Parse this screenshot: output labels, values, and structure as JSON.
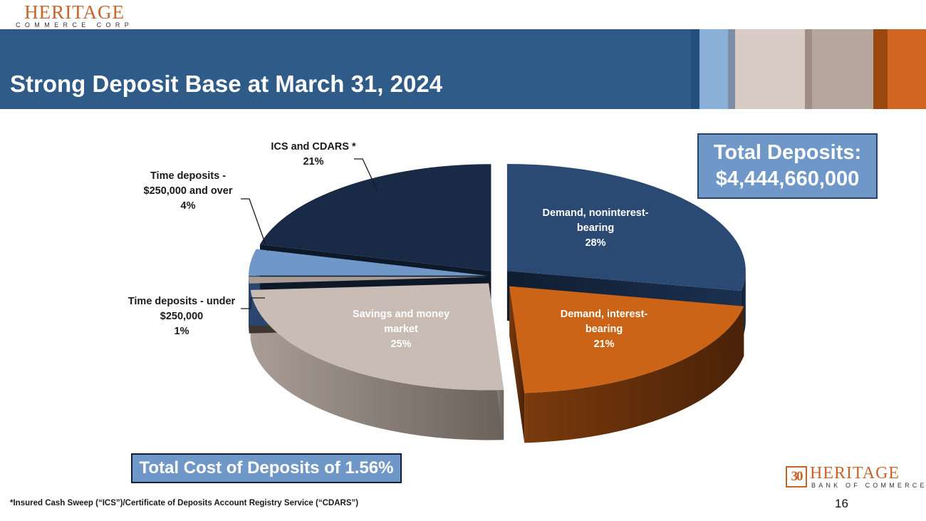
{
  "header": {
    "logo_brand": "HERITAGE",
    "logo_sub": "COMMERCE CORP",
    "title": "Strong Deposit Base at March 31, 2024"
  },
  "colors": {
    "banner": "#2f5b88",
    "accent_orange": "#c8642a",
    "callout_fill": "#6f97c7"
  },
  "callout": {
    "line1": "Total Deposits:",
    "line2": "$4,444,660,000"
  },
  "cost_box": {
    "label": "Total Cost of Deposits of 1.56%"
  },
  "footnote": "*Insured Cash Sweep (“ICS”)/Certificate of Deposits Account Registry Service (“CDARS”)",
  "page_number": "16",
  "footer_logo": {
    "badge": "30",
    "brand": "HERITAGE",
    "sub": "BANK OF COMMERCE"
  },
  "chart_data": {
    "type": "pie",
    "style": "3d-exploded",
    "title": "",
    "slices": [
      {
        "label_lines": [
          "Demand, noninterest-",
          "bearing"
        ],
        "pct_label": "28%",
        "value": 28,
        "color": "#2a4a73",
        "label_color": "#ffffff",
        "label_inside": true
      },
      {
        "label_lines": [
          "Demand, interest-",
          "bearing"
        ],
        "pct_label": "21%",
        "value": 21,
        "color": "#cc6418",
        "label_color": "#ffffff",
        "label_inside": true
      },
      {
        "label_lines": [
          "Savings and money",
          "market"
        ],
        "pct_label": "25%",
        "value": 25,
        "color": "#c8bcb4",
        "label_color": "#ffffff",
        "label_inside": true
      },
      {
        "label_lines": [
          "Time deposits - under",
          "$250,000"
        ],
        "pct_label": "1%",
        "value": 1,
        "color": "#a89c94",
        "label_color": "#1a1a1a",
        "label_inside": false
      },
      {
        "label_lines": [
          "Time deposits -",
          "$250,000 and over"
        ],
        "pct_label": "4%",
        "value": 4,
        "color": "#6f97c7",
        "label_color": "#1a1a1a",
        "label_inside": false
      },
      {
        "label_lines": [
          "ICS and CDARS *"
        ],
        "pct_label": "21%",
        "value": 21,
        "color": "#182a45",
        "label_color": "#1a1a1a",
        "label_inside": false
      }
    ]
  }
}
